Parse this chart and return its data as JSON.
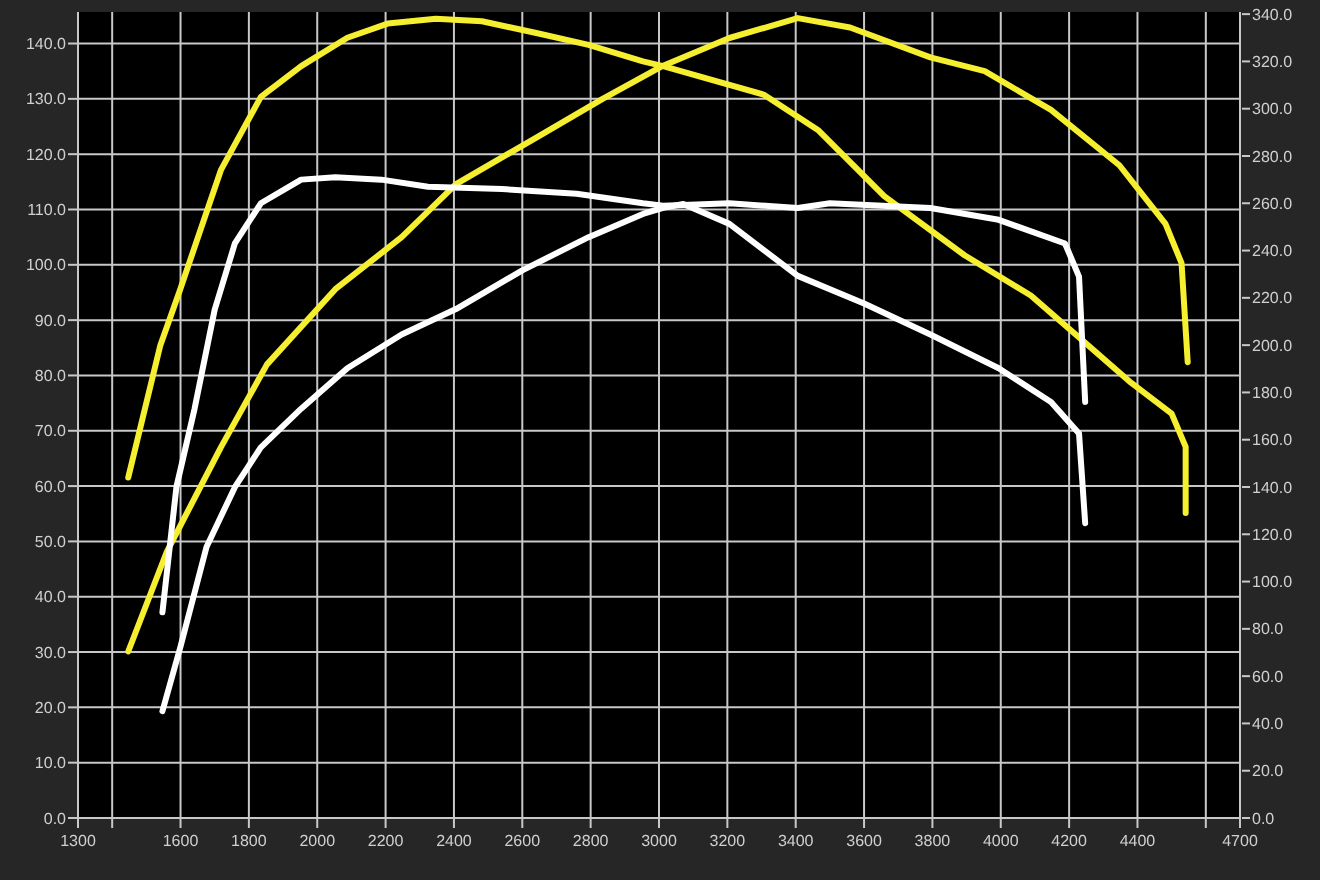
{
  "chart_data": {
    "type": "line",
    "xlim": [
      1300,
      4700
    ],
    "xticks": [
      1300,
      {
        "value": 1400,
        "label": null
      },
      1600,
      1800,
      2000,
      2200,
      2400,
      2600,
      2800,
      3000,
      3200,
      3400,
      3600,
      3800,
      4000,
      4200,
      4400,
      {
        "value": 4600,
        "label": null
      },
      4700
    ],
    "ylim": [
      0,
      145.7
    ],
    "yticks": [
      {
        "value": 0,
        "label": "0.0"
      },
      {
        "value": 10,
        "label": "10.0"
      },
      {
        "value": 20,
        "label": "20.0"
      },
      {
        "value": 30,
        "label": "30.0"
      },
      {
        "value": 40,
        "label": "40.0"
      },
      {
        "value": 50,
        "label": "50.0"
      },
      {
        "value": 60,
        "label": "60.0"
      },
      {
        "value": 70,
        "label": "70.0"
      },
      {
        "value": 80,
        "label": "80.0"
      },
      {
        "value": 90,
        "label": "90.0"
      },
      {
        "value": 100,
        "label": "100.0"
      },
      {
        "value": 110,
        "label": "110.0"
      },
      {
        "value": 120,
        "label": "120.0"
      },
      {
        "value": 130,
        "label": "130.0"
      },
      {
        "value": 140,
        "label": "140.0"
      }
    ],
    "y2lim": [
      0,
      340.9
    ],
    "y2ticks": [
      {
        "value": 0,
        "label": "0.0"
      },
      {
        "value": 20,
        "label": "20.0"
      },
      {
        "value": 40,
        "label": "40.0"
      },
      {
        "value": 60,
        "label": "60.0"
      },
      {
        "value": 80,
        "label": "80.0"
      },
      {
        "value": 100,
        "label": "100.0"
      },
      {
        "value": 120,
        "label": "120.0"
      },
      {
        "value": 140,
        "label": "140.0"
      },
      {
        "value": 160,
        "label": "160.0"
      },
      {
        "value": 180,
        "label": "180.0"
      },
      {
        "value": 200,
        "label": "200.0"
      },
      {
        "value": 220,
        "label": "220.0"
      },
      {
        "value": 240,
        "label": "240.0"
      },
      {
        "value": 260,
        "label": "260.0"
      },
      {
        "value": 280,
        "label": "280.0"
      },
      {
        "value": 300,
        "label": "300.0"
      },
      {
        "value": 320,
        "label": "320.0"
      },
      {
        "value": 340,
        "label": "340.0"
      }
    ],
    "grid": true,
    "marker": "none",
    "line_style": "solid",
    "series": [
      {
        "color": "#f5ef30",
        "axis": "y2",
        "x": [
          1447,
          1541,
          1600,
          1718,
          1835,
          1953,
          2088,
          2206,
          2347,
          2482,
          2641,
          2794,
          2953,
          3012,
          3306,
          3465,
          3659,
          3894,
          4088,
          4247,
          4382,
          4500,
          4541,
          4541
        ],
        "values": [
          144,
          200,
          224,
          274,
          305,
          318,
          330,
          336,
          338,
          337,
          332,
          327,
          320,
          318,
          306,
          291,
          263,
          238,
          221,
          201,
          184,
          171,
          157,
          129
        ]
      },
      {
        "color": "#f5ef30",
        "x": [
          1447,
          1559,
          1718,
          1853,
          2053,
          2247,
          2406,
          2641,
          2835,
          3012,
          3206,
          3406,
          3559,
          3794,
          3953,
          4147,
          4347,
          4482,
          4529,
          4547
        ],
        "values": [
          30.1,
          48,
          67,
          82,
          95.6,
          105,
          114.6,
          123,
          130,
          136,
          141,
          144.6,
          142.9,
          137.5,
          135,
          128,
          118,
          107.4,
          100.3,
          82.4
        ]
      },
      {
        "color": "#ffffff",
        "axis": "y2",
        "x": [
          1547,
          1588,
          1641,
          1700,
          1759,
          1835,
          1953,
          2053,
          2188,
          2324,
          2541,
          2759,
          2953,
          3012,
          3206,
          3406,
          3500,
          3794,
          3994,
          4188,
          4229,
          4247
        ],
        "values": [
          87,
          140,
          173,
          215,
          243,
          260,
          270,
          271,
          270,
          267,
          266,
          264,
          260,
          259,
          260,
          258,
          260,
          258,
          253,
          243,
          229,
          176
        ]
      },
      {
        "color": "#ffffff",
        "x": [
          1547,
          1600,
          1676,
          1759,
          1835,
          1953,
          2088,
          2247,
          2406,
          2600,
          2794,
          2953,
          3012,
          3071,
          3206,
          3406,
          3600,
          3794,
          3994,
          4147,
          4229,
          4247
        ],
        "values": [
          19.3,
          31,
          49,
          59.8,
          67,
          74,
          81.3,
          87.4,
          92,
          99,
          105,
          109.2,
          110.3,
          111,
          107.4,
          98,
          93,
          87.4,
          81.3,
          75.2,
          69.5,
          53.3
        ]
      }
    ]
  }
}
